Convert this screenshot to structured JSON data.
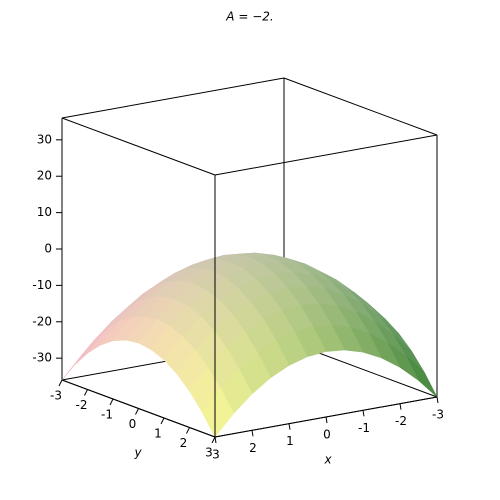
{
  "chart_data": {
    "type": "surface",
    "title": "A = −2.",
    "xlabel": "x",
    "ylabel": "y",
    "x": [
      -3,
      -2.5,
      -2,
      -1.5,
      -1,
      -0.5,
      0,
      0.5,
      1,
      1.5,
      2,
      2.5,
      3
    ],
    "y": [
      -3,
      -2.5,
      -2,
      -1.5,
      -1,
      -0.5,
      0,
      0.5,
      1,
      1.5,
      2,
      2.5,
      3
    ],
    "z": [
      [
        -36,
        -30.5,
        -26,
        -22.5,
        -20,
        -18.5,
        -18,
        -18.5,
        -20,
        -22.5,
        -26,
        -30.5,
        -36
      ],
      [
        -30.5,
        -25,
        -20.5,
        -17,
        -14.5,
        -13,
        -12.5,
        -13,
        -14.5,
        -17,
        -20.5,
        -25,
        -30.5
      ],
      [
        -26,
        -20.5,
        -16,
        -12.5,
        -10,
        -8.5,
        -8,
        -8.5,
        -10,
        -12.5,
        -16,
        -20.5,
        -26
      ],
      [
        -22.5,
        -17,
        -12.5,
        -9,
        -6.5,
        -5,
        -4.5,
        -5,
        -6.5,
        -9,
        -12.5,
        -17,
        -22.5
      ],
      [
        -20,
        -14.5,
        -10,
        -6.5,
        -4,
        -2.5,
        -2,
        -2.5,
        -4,
        -6.5,
        -10,
        -14.5,
        -20
      ],
      [
        -18.5,
        -13,
        -8.5,
        -5,
        -2.5,
        -1,
        -0.5,
        -1,
        -2.5,
        -5,
        -8.5,
        -13,
        -18.5
      ],
      [
        -18,
        -12.5,
        -8,
        -4.5,
        -2,
        -0.5,
        0,
        -0.5,
        -2,
        -4.5,
        -8,
        -12.5,
        -18
      ],
      [
        -18.5,
        -13,
        -8.5,
        -5,
        -2.5,
        -1,
        -0.5,
        -1,
        -2.5,
        -5,
        -8.5,
        -13,
        -18.5
      ],
      [
        -20,
        -14.5,
        -10,
        -6.5,
        -4,
        -2.5,
        -2,
        -2.5,
        -4,
        -6.5,
        -10,
        -14.5,
        -20
      ],
      [
        -22.5,
        -17,
        -12.5,
        -9,
        -6.5,
        -5,
        -4.5,
        -5,
        -6.5,
        -9,
        -12.5,
        -17,
        -22.5
      ],
      [
        -26,
        -20.5,
        -16,
        -12.5,
        -10,
        -8.5,
        -8,
        -8.5,
        -10,
        -12.5,
        -16,
        -20.5,
        -26
      ],
      [
        -30.5,
        -25,
        -20.5,
        -17,
        -14.5,
        -13,
        -12.5,
        -13,
        -14.5,
        -17,
        -20.5,
        -25,
        -30.5
      ],
      [
        -36,
        -30.5,
        -26,
        -22.5,
        -20,
        -18.5,
        -18,
        -18.5,
        -20,
        -22.5,
        -26,
        -30.5,
        -36
      ]
    ],
    "xlim": [
      -3,
      3
    ],
    "ylim": [
      -3,
      3
    ],
    "zlim": [
      -36,
      36
    ],
    "xticks": [
      3,
      2,
      1,
      0,
      -1,
      -2,
      -3
    ],
    "yticks": [
      -3,
      -2,
      -1,
      0,
      1,
      2,
      3
    ],
    "zticks": [
      30,
      20,
      10,
      0,
      -10,
      -20,
      -30
    ]
  }
}
